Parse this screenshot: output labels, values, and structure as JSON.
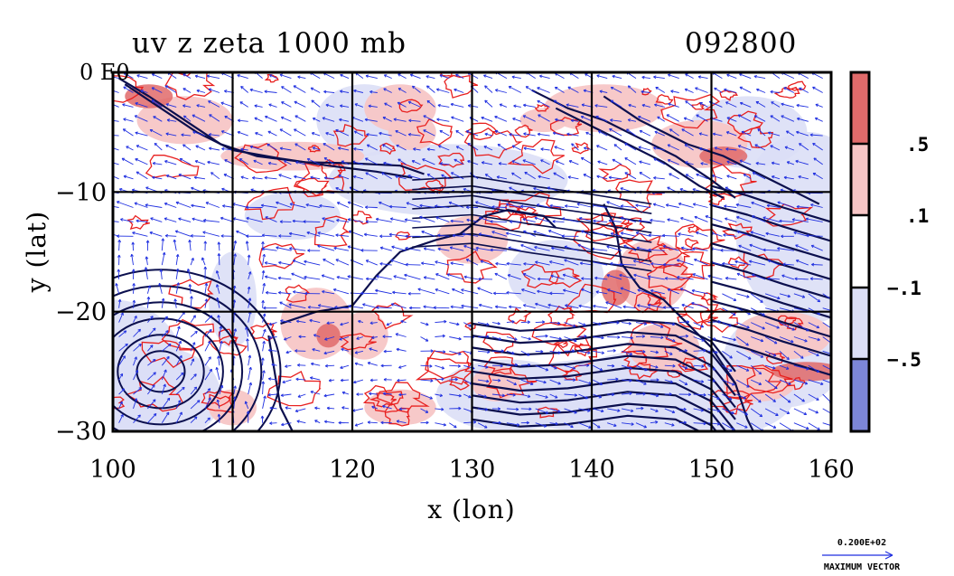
{
  "chart_data": {
    "type": "heatmap",
    "title": "uv z zeta 1000 mb",
    "date_label": "092800",
    "xlabel": "x (lon)",
    "ylabel": "y (lat)",
    "xlim": [
      100,
      160
    ],
    "ylim": [
      -30,
      0
    ],
    "x_ticks": [
      100,
      110,
      120,
      130,
      140,
      150,
      160
    ],
    "x_tick_labels": [
      "100",
      "110",
      "120",
      "130",
      "140",
      "150",
      "160"
    ],
    "y_ticks": [
      0,
      -10,
      -20,
      -30
    ],
    "y_tick_labels": [
      "0 E0",
      "−10",
      "−20",
      "−30"
    ],
    "grid": true,
    "colorbar": {
      "placement": "right",
      "labels": [
        ".5",
        ".1",
        "−.1",
        "−.5"
      ],
      "bounds": [
        0.5,
        0.1,
        -0.1,
        -0.5
      ],
      "colors": [
        "#e06a6a",
        "#f7c6c6",
        "#ffffff",
        "#dcdff6",
        "#7c86d8"
      ]
    },
    "vector_reference": {
      "value_label": "0.200E+02",
      "caption": "MAXIMUM VECTOR"
    },
    "colors": {
      "vector": "#1f2fe0",
      "height_contour": "#0b0f4e",
      "positive_fill": "#f7c6c6",
      "strong_positive_fill": "#e06a6a",
      "negative_fill": "#dcdff6",
      "strong_negative_fill": "#7c86d8",
      "zeta_contour": "#e8201f"
    }
  }
}
